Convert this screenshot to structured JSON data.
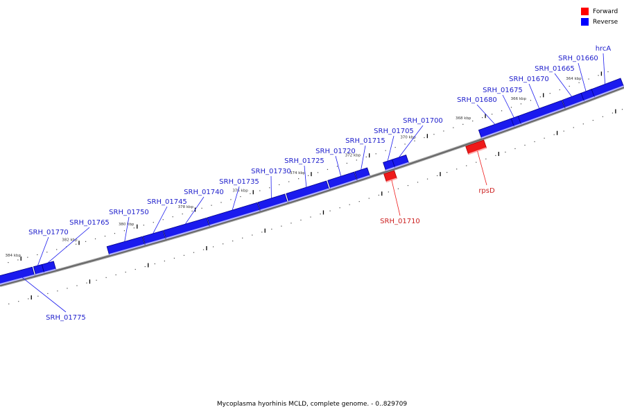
{
  "title": "Mycoplasma hyorhinis MCLD, complete genome. - 0..829709",
  "legend": {
    "forward_label": "Forward",
    "reverse_label": "Reverse",
    "forward_color": "#ff0000",
    "reverse_color": "#0000ff"
  },
  "colors": {
    "reverse": "#1a1aee",
    "forward": "#ee1a1a",
    "backbone": "#888888",
    "label_reverse": "#2020cc",
    "label_forward": "#cc2020"
  },
  "ticks": [
    {
      "label": "364 kbp"
    },
    {
      "label": "366 kbp"
    },
    {
      "label": "368 kbp"
    },
    {
      "label": "370 kbp"
    },
    {
      "label": "372 kbp"
    },
    {
      "label": "374 kbp"
    },
    {
      "label": "376 kbp"
    },
    {
      "label": "378 kbp"
    },
    {
      "label": "380 kbp"
    },
    {
      "label": "382 kbp"
    },
    {
      "label": "384 kbp"
    }
  ],
  "features": [
    {
      "name": "hrcA",
      "strand": "reverse"
    },
    {
      "name": "SRH_01660",
      "strand": "reverse"
    },
    {
      "name": "SRH_01665",
      "strand": "reverse"
    },
    {
      "name": "SRH_01670",
      "strand": "reverse"
    },
    {
      "name": "SRH_01675",
      "strand": "reverse"
    },
    {
      "name": "SRH_01680",
      "strand": "reverse"
    },
    {
      "name": "rpsD",
      "strand": "forward"
    },
    {
      "name": "SRH_01700",
      "strand": "reverse"
    },
    {
      "name": "SRH_01705",
      "strand": "reverse"
    },
    {
      "name": "SRH_01710",
      "strand": "forward"
    },
    {
      "name": "SRH_01715",
      "strand": "reverse"
    },
    {
      "name": "SRH_01720",
      "strand": "reverse"
    },
    {
      "name": "SRH_01725",
      "strand": "reverse"
    },
    {
      "name": "SRH_01730",
      "strand": "reverse"
    },
    {
      "name": "SRH_01735",
      "strand": "reverse"
    },
    {
      "name": "SRH_01740",
      "strand": "reverse"
    },
    {
      "name": "SRH_01745",
      "strand": "reverse"
    },
    {
      "name": "SRH_01750",
      "strand": "reverse"
    },
    {
      "name": "SRH_01765",
      "strand": "reverse"
    },
    {
      "name": "SRH_01770",
      "strand": "reverse"
    },
    {
      "name": "SRH_01775",
      "strand": "reverse"
    }
  ]
}
